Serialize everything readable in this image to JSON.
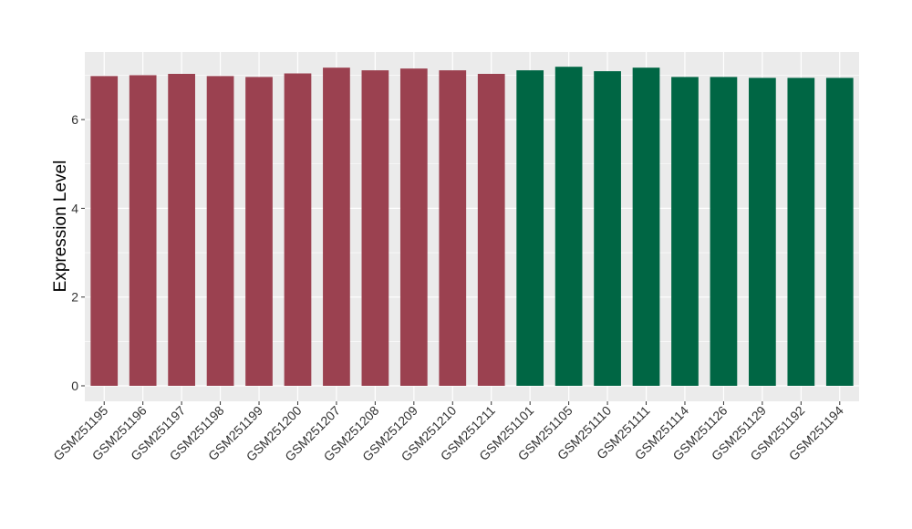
{
  "chart_data": {
    "type": "bar",
    "title": "",
    "xlabel": "",
    "ylabel": "Expression Level",
    "ylim": [
      0,
      7.65
    ],
    "yticks": [
      0,
      2,
      4,
      6
    ],
    "grid": true,
    "legend": "none",
    "panel_background": "#ebebeb",
    "grid_color": "#ffffff",
    "categories": [
      "GSM251195",
      "GSM251196",
      "GSM251197",
      "GSM251198",
      "GSM251199",
      "GSM251200",
      "GSM251207",
      "GSM251208",
      "GSM251209",
      "GSM251210",
      "GSM251211",
      "GSM251101",
      "GSM251105",
      "GSM251110",
      "GSM251111",
      "GSM251114",
      "GSM251126",
      "GSM251129",
      "GSM251192",
      "GSM251194"
    ],
    "values": [
      6.98,
      7.0,
      7.03,
      6.98,
      6.96,
      7.04,
      7.17,
      7.11,
      7.15,
      7.11,
      7.03,
      7.11,
      7.19,
      7.09,
      7.17,
      6.96,
      6.96,
      6.94,
      6.94,
      6.94
    ],
    "colors": [
      "#9b4150",
      "#9b4150",
      "#9b4150",
      "#9b4150",
      "#9b4150",
      "#9b4150",
      "#9b4150",
      "#9b4150",
      "#9b4150",
      "#9b4150",
      "#9b4150",
      "#006644",
      "#006644",
      "#006644",
      "#006644",
      "#006644",
      "#006644",
      "#006644",
      "#006644",
      "#006644"
    ]
  }
}
